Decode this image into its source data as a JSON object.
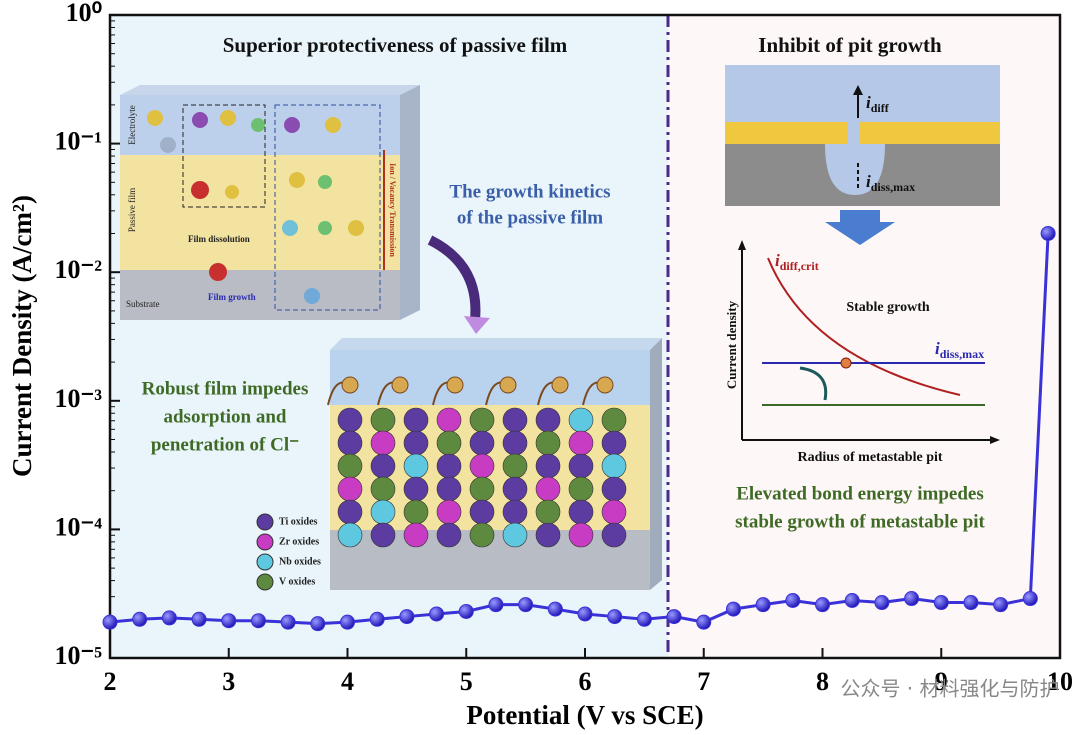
{
  "chart_data": {
    "type": "line",
    "x_label": "Potential (V vs SCE)",
    "y_label": "Current Density (A/cm²)",
    "xlim": [
      2,
      10
    ],
    "xticks": [
      2,
      3,
      4,
      5,
      6,
      7,
      8,
      9,
      10
    ],
    "ylim": [
      1e-05,
      1
    ],
    "yticks": [
      {
        "value": 1e-05,
        "label": "10⁻⁵"
      },
      {
        "value": 0.0001,
        "label": "10⁻⁴"
      },
      {
        "value": 0.001,
        "label": "10⁻³"
      },
      {
        "value": 0.01,
        "label": "10⁻²"
      },
      {
        "value": 0.1,
        "label": "10⁻¹"
      },
      {
        "value": 1,
        "label": "10⁰"
      }
    ],
    "log_y": true,
    "series": [
      {
        "color": "#3a32d8",
        "x": [
          2.0,
          2.25,
          2.5,
          2.75,
          3.0,
          3.25,
          3.5,
          3.75,
          4.0,
          4.25,
          4.5,
          4.75,
          5.0,
          5.25,
          5.5,
          5.75,
          6.0,
          6.25,
          6.5,
          6.75,
          7.0,
          7.25,
          7.5,
          7.75,
          8.0,
          8.25,
          8.5,
          8.75,
          9.0,
          9.25,
          9.5,
          9.75,
          9.9
        ],
        "values": [
          1.9e-05,
          2e-05,
          2.05e-05,
          2e-05,
          1.95e-05,
          1.95e-05,
          1.9e-05,
          1.85e-05,
          1.9e-05,
          2e-05,
          2.1e-05,
          2.2e-05,
          2.3e-05,
          2.6e-05,
          2.6e-05,
          2.4e-05,
          2.2e-05,
          2.1e-05,
          2e-05,
          2.1e-05,
          1.9e-05,
          2.4e-05,
          2.6e-05,
          2.8e-05,
          2.6e-05,
          2.8e-05,
          2.7e-05,
          2.9e-05,
          2.7e-05,
          2.7e-05,
          2.6e-05,
          2.9e-05,
          0.02
        ]
      }
    ],
    "annotations": [
      "Superior protectiveness of passive film",
      "Inhibit of pit growth",
      "The growth kinetics",
      "of the passive film",
      "Robust film impedes",
      "adsorption and",
      "penetration of Cl⁻",
      "Elevated bond energy impedes",
      "stable growth of metastable pit",
      "Current density",
      "Radius of metastable pit",
      "Stable growth",
      "Electrolyte",
      "Passive film",
      "Substrate",
      "Film dissolution",
      "Film growth",
      "Ion / Vacancy Transmission",
      "Ti oxides",
      "Zr oxides",
      "Nb oxides",
      "V oxides",
      "公众号 · 材料强化与防护"
    ],
    "symbols": [
      {
        "symbol": "i",
        "subscript": "diff,crit"
      },
      {
        "symbol": "i",
        "subscript": "diss,max"
      },
      {
        "symbol": "i",
        "subscript": "diff"
      },
      {
        "symbol": "i",
        "subscript": "diss,max"
      }
    ]
  }
}
